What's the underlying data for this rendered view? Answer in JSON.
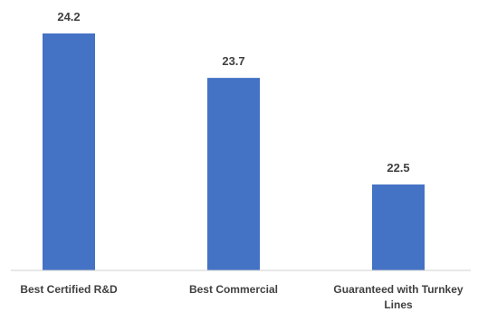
{
  "chart_data": {
    "type": "bar",
    "categories": [
      "Best Certified R&D",
      "Best Commercial",
      "Guaranteed with Turnkey Lines"
    ],
    "category_lines": [
      [
        "Best Certified R&D"
      ],
      [
        "Best Commercial"
      ],
      [
        "Guaranteed with Turnkey",
        "Lines"
      ]
    ],
    "values": [
      24.2,
      23.7,
      22.5
    ],
    "value_labels": [
      "24.2",
      "23.7",
      "22.5"
    ],
    "title": "",
    "xlabel": "",
    "ylabel": "",
    "grid": false,
    "legend": "none",
    "bar_color": "#4472C4"
  }
}
